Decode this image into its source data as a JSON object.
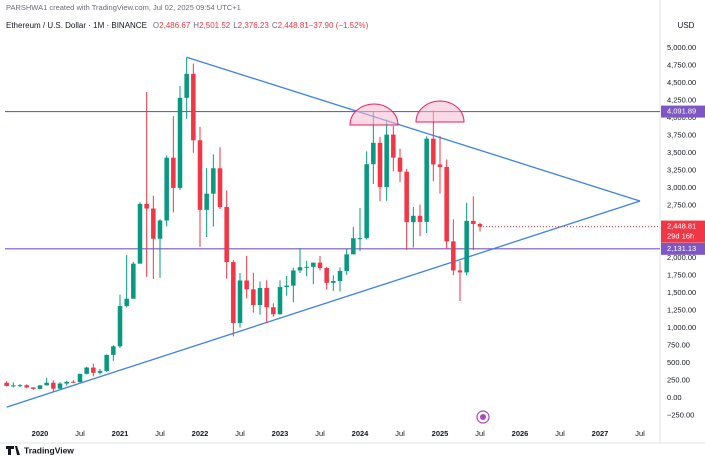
{
  "chart_data": {
    "type": "candlestick",
    "credit": "PARSHWA1 created with TradingView.com, Jul 02, 2025 09:54 UTC+1",
    "title": "Ethereum / U.S. Dollar · 1M · BINANCE",
    "header_values": [
      {
        "label": "O",
        "value": "2,486.67"
      },
      {
        "label": "H",
        "value": "2,501.52"
      },
      {
        "label": "L",
        "value": "2,376.23"
      },
      {
        "label": "C",
        "value": "2,448.81"
      },
      {
        "label": "",
        "value": "−37.90 (−1.52%)"
      }
    ],
    "currency": "USD",
    "brand": "TradingView",
    "up_color": "#089981",
    "down_color": "#f23645",
    "x": [
      "2019-08",
      "2019-09",
      "2019-10",
      "2019-11",
      "2019-12",
      "2020-01",
      "2020-02",
      "2020-03",
      "2020-04",
      "2020-05",
      "2020-06",
      "2020-07",
      "2020-08",
      "2020-09",
      "2020-10",
      "2020-11",
      "2020-12",
      "2021-01",
      "2021-02",
      "2021-03",
      "2021-04",
      "2021-05",
      "2021-06",
      "2021-07",
      "2021-08",
      "2021-09",
      "2021-10",
      "2021-11",
      "2021-12",
      "2022-01",
      "2022-02",
      "2022-03",
      "2022-04",
      "2022-05",
      "2022-06",
      "2022-07",
      "2022-08",
      "2022-09",
      "2022-10",
      "2022-11",
      "2022-12",
      "2023-01",
      "2023-02",
      "2023-03",
      "2023-04",
      "2023-05",
      "2023-06",
      "2023-07",
      "2023-08",
      "2023-09",
      "2023-10",
      "2023-11",
      "2023-12",
      "2024-01",
      "2024-02",
      "2024-03",
      "2024-04",
      "2024-05",
      "2024-06",
      "2024-07",
      "2024-08",
      "2024-09",
      "2024-10",
      "2024-11",
      "2024-12",
      "2025-01",
      "2025-02",
      "2025-03",
      "2025-04",
      "2025-05",
      "2025-06",
      "2025-07"
    ],
    "open": [
      218,
      172,
      180,
      182,
      151,
      130,
      180,
      218,
      133,
      206,
      231,
      226,
      345,
      435,
      360,
      386,
      616,
      738,
      1313,
      1418,
      1919,
      2773,
      2707,
      2275,
      2536,
      3433,
      3001,
      4288,
      4631,
      3682,
      2688,
      2919,
      3282,
      2728,
      1942,
      1071,
      1679,
      1553,
      1328,
      1572,
      1296,
      1196,
      1585,
      1605,
      1822,
      1869,
      1874,
      1934,
      1857,
      1645,
      1671,
      1815,
      2052,
      2282,
      2283,
      3340,
      3646,
      3014,
      3763,
      3434,
      3233,
      2513,
      2603,
      2516,
      3705,
      3337,
      3300,
      2237,
      1822,
      1794,
      2530,
      2486.67
    ],
    "high": [
      239,
      223,
      199,
      195,
      153,
      184,
      288,
      253,
      227,
      245,
      255,
      347,
      445,
      488,
      415,
      622,
      755,
      1476,
      2041,
      1944,
      2797,
      4372,
      2891,
      2553,
      3466,
      4027,
      4460,
      4868,
      4778,
      3876,
      3284,
      3480,
      3582,
      2966,
      1970,
      1786,
      2030,
      1790,
      1664,
      1680,
      1352,
      1680,
      1743,
      1860,
      2141,
      1960,
      1930,
      2029,
      1874,
      1752,
      1866,
      2133,
      2445,
      2717,
      3523,
      4093,
      3730,
      3976,
      3887,
      3563,
      3275,
      2728,
      2764,
      3740,
      4109,
      3745,
      3408,
      2551,
      1956,
      2788,
      2880,
      2501.52
    ],
    "low": [
      165,
      153,
      157,
      139,
      117,
      127,
      178,
      90,
      131,
      176,
      215,
      224,
      335,
      308,
      335,
      370,
      532,
      714,
      1293,
      1441,
      1933,
      1730,
      1700,
      1718,
      2452,
      2652,
      2970,
      3988,
      3503,
      2159,
      2300,
      2450,
      2700,
      1704,
      880,
      1006,
      1423,
      1220,
      1190,
      1073,
      1162,
      1191,
      1461,
      1368,
      1785,
      1740,
      1626,
      1822,
      1550,
      1531,
      1521,
      1759,
      2070,
      2100,
      2263,
      3057,
      2811,
      2817,
      3238,
      3083,
      2116,
      2150,
      2310,
      2356,
      3098,
      2922,
      2126,
      1755,
      1385,
      1751,
      2112,
      2376.23
    ],
    "close": [
      172,
      180,
      182,
      151,
      130,
      180,
      218,
      133,
      206,
      231,
      226,
      345,
      435,
      360,
      386,
      616,
      738,
      1313,
      1418,
      1919,
      2773,
      2707,
      2275,
      2536,
      3433,
      3001,
      4288,
      4631,
      3682,
      2688,
      2919,
      3282,
      2728,
      1942,
      1071,
      1679,
      1553,
      1328,
      1572,
      1296,
      1196,
      1585,
      1605,
      1822,
      1869,
      1874,
      1934,
      1857,
      1645,
      1671,
      1815,
      2052,
      2282,
      2283,
      3340,
      3646,
      3014,
      3763,
      3434,
      3233,
      2513,
      2603,
      2516,
      3705,
      3337,
      3300,
      2237,
      1822,
      1794,
      2530,
      2486,
      2448.81
    ],
    "xlim": [
      "2019-07",
      "2027-10"
    ],
    "xticks": [
      {
        "value": "2020-01",
        "label": "2020"
      },
      {
        "value": "2020-07",
        "label": "Jul"
      },
      {
        "value": "2021-01",
        "label": "2021"
      },
      {
        "value": "2021-07",
        "label": "Jul"
      },
      {
        "value": "2022-01",
        "label": "2022"
      },
      {
        "value": "2022-07",
        "label": "Jul"
      },
      {
        "value": "2023-01",
        "label": "2023"
      },
      {
        "value": "2023-07",
        "label": "Jul"
      },
      {
        "value": "2024-01",
        "label": "2024"
      },
      {
        "value": "2024-07",
        "label": "Jul"
      },
      {
        "value": "2025-01",
        "label": "2025"
      },
      {
        "value": "2025-07",
        "label": "Jul"
      },
      {
        "value": "2026-01",
        "label": "2026"
      },
      {
        "value": "2026-07",
        "label": "Jul"
      },
      {
        "value": "2027-01",
        "label": "2027"
      },
      {
        "value": "2027-07",
        "label": "Jul"
      }
    ],
    "ylim": [
      -386,
      5429
    ],
    "yticks": [
      {
        "value": -250,
        "label": "−250.00"
      },
      {
        "value": 0,
        "label": "0.00"
      },
      {
        "value": 250,
        "label": "250.00"
      },
      {
        "value": 500,
        "label": "500.00"
      },
      {
        "value": 750,
        "label": "750.00"
      },
      {
        "value": 1000,
        "label": "1,000.00"
      },
      {
        "value": 1250,
        "label": "1,250.00"
      },
      {
        "value": 1500,
        "label": "1,500.00"
      },
      {
        "value": 1750,
        "label": "1,750.00"
      },
      {
        "value": 2000,
        "label": "2,000.00"
      },
      {
        "value": 2750,
        "label": "2,750.00"
      },
      {
        "value": 3000,
        "label": "3,000.00"
      },
      {
        "value": 3250,
        "label": "3,250.00"
      },
      {
        "value": 3500,
        "label": "3,500.00"
      },
      {
        "value": 3750,
        "label": "3,750.00"
      },
      {
        "value": 4000,
        "label": "4,000.00"
      },
      {
        "value": 4250,
        "label": "4,250.00"
      },
      {
        "value": 4500,
        "label": "4,500.00"
      },
      {
        "value": 4750,
        "label": "4,750.00"
      },
      {
        "value": 5000,
        "label": "5,000.00"
      }
    ],
    "grid": false,
    "hlines": [
      {
        "value": 4091.89,
        "label": "4,091.89",
        "color": "#7e57c2"
      },
      {
        "value": 2131.13,
        "label": "2,131.13",
        "color": "#7e57c2"
      }
    ],
    "last_price": {
      "value": 2448.81,
      "label": "2,448.81",
      "countdown": "29d 16h"
    },
    "trendlines": [
      {
        "color": "#3d82e8",
        "x": [
          "2021-11",
          "2027-07"
        ],
        "values": [
          4868,
          2814
        ]
      },
      {
        "color": "#3d82e8",
        "x": [
          "2019-08",
          "2027-07"
        ],
        "values": [
          -130,
          2814
        ]
      }
    ]
  }
}
